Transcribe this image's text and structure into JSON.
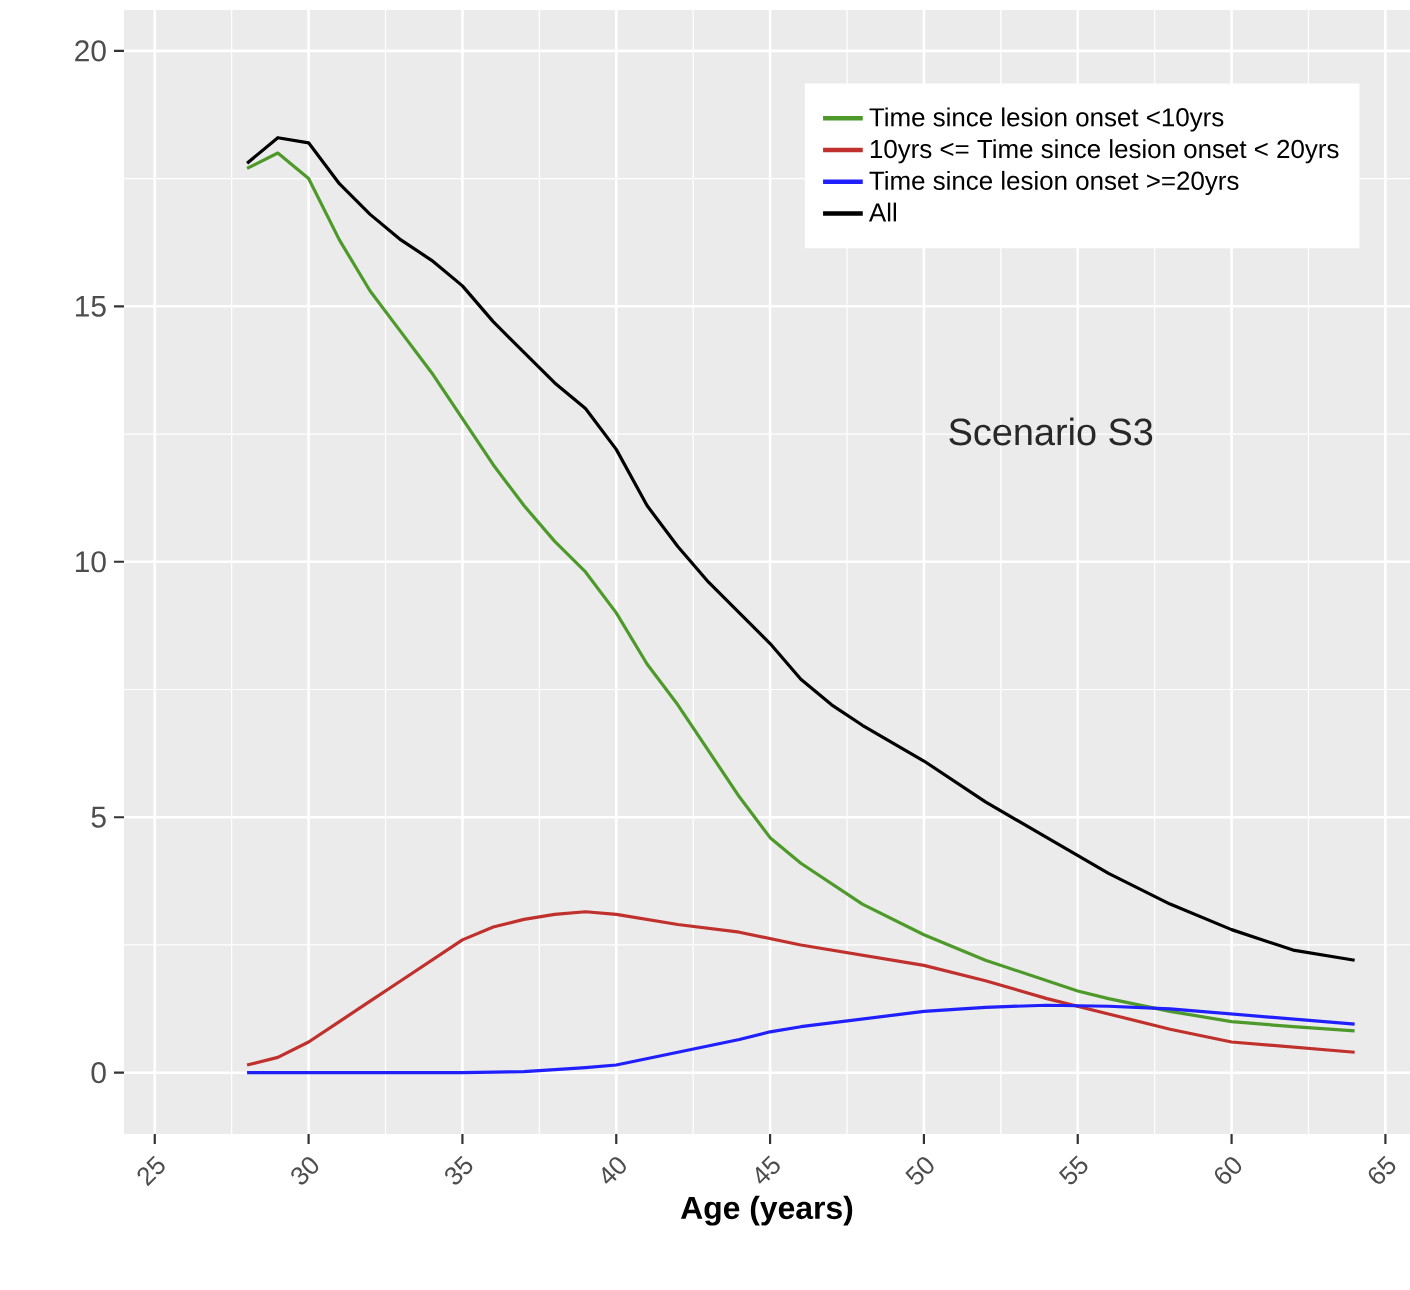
{
  "chart_data": {
    "type": "line",
    "xlabel": "Age (years)",
    "xlim": [
      24,
      65.8
    ],
    "ylim": [
      -1.2,
      20.8
    ],
    "xticks": [
      25,
      30,
      35,
      40,
      45,
      50,
      55,
      60,
      65
    ],
    "yticks": [
      0,
      5,
      10,
      15,
      20
    ],
    "grid": true,
    "legend": "top right",
    "annotations": [
      "Scenario S3"
    ],
    "series": [
      {
        "name": "Time since lesion onset <10yrs",
        "color": "#4d9a2a",
        "x": [
          28,
          29,
          30,
          31,
          32,
          33,
          34,
          35,
          36,
          37,
          38,
          39,
          40,
          41,
          42,
          43,
          44,
          45,
          46,
          47,
          48,
          49,
          50,
          52,
          54,
          55,
          56,
          58,
          60,
          62,
          64
        ],
        "values": [
          17.7,
          18.0,
          17.5,
          16.3,
          15.3,
          14.5,
          13.7,
          12.8,
          11.9,
          11.1,
          10.4,
          9.8,
          9.0,
          8.0,
          7.2,
          6.3,
          5.4,
          4.6,
          4.1,
          3.7,
          3.3,
          3.0,
          2.7,
          2.2,
          1.8,
          1.6,
          1.45,
          1.2,
          1.0,
          0.9,
          0.82
        ]
      },
      {
        "name": "10yrs <= Time since lesion onset < 20yrs",
        "color": "#c0302c",
        "x": [
          28,
          29,
          30,
          31,
          32,
          33,
          34,
          35,
          36,
          37,
          38,
          39,
          40,
          42,
          44,
          46,
          48,
          50,
          52,
          54,
          56,
          58,
          60,
          62,
          64
        ],
        "values": [
          0.15,
          0.3,
          0.6,
          1.0,
          1.4,
          1.8,
          2.2,
          2.6,
          2.85,
          3.0,
          3.1,
          3.15,
          3.1,
          2.9,
          2.75,
          2.5,
          2.3,
          2.1,
          1.8,
          1.45,
          1.15,
          0.85,
          0.6,
          0.5,
          0.4
        ]
      },
      {
        "name": "Time since lesion onset >=20yrs",
        "color": "#1f1fff",
        "x": [
          28,
          30,
          35,
          37,
          39,
          40,
          42,
          44,
          45,
          46,
          48,
          50,
          52,
          54,
          56,
          58,
          60,
          62,
          64
        ],
        "values": [
          0,
          0,
          0,
          0.02,
          0.1,
          0.15,
          0.4,
          0.65,
          0.8,
          0.9,
          1.05,
          1.2,
          1.28,
          1.32,
          1.3,
          1.25,
          1.15,
          1.05,
          0.95
        ]
      },
      {
        "name": "All",
        "color": "#000000",
        "x": [
          28,
          29,
          30,
          31,
          32,
          33,
          34,
          35,
          36,
          37,
          38,
          39,
          40,
          41,
          42,
          43,
          44,
          45,
          46,
          47,
          48,
          50,
          52,
          54,
          56,
          58,
          60,
          62,
          64
        ],
        "values": [
          17.8,
          18.3,
          18.2,
          17.4,
          16.8,
          16.3,
          15.9,
          15.4,
          14.7,
          14.1,
          13.5,
          13.0,
          12.2,
          11.1,
          10.3,
          9.6,
          9.0,
          8.4,
          7.7,
          7.2,
          6.8,
          6.1,
          5.3,
          4.6,
          3.9,
          3.3,
          2.8,
          2.4,
          2.2
        ]
      }
    ]
  }
}
